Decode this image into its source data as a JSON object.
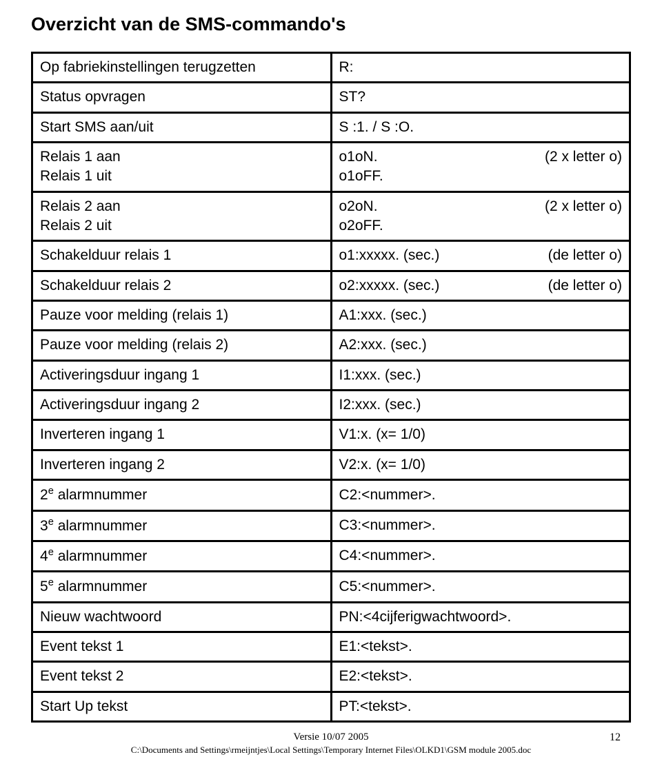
{
  "title": "Overzicht van de SMS-commando's",
  "rows": [
    {
      "left": [
        "Op fabriekinstellingen terugzetten"
      ],
      "right": [
        "R:"
      ],
      "note": ""
    },
    {
      "left": [
        "Status opvragen"
      ],
      "right": [
        "ST?"
      ],
      "note": ""
    },
    {
      "left": [
        "Start SMS aan/uit"
      ],
      "right": [
        "S :1. / S :O."
      ],
      "note": ""
    },
    {
      "left": [
        "Relais 1 aan",
        "Relais 1 uit"
      ],
      "right": [
        "o1oN.",
        "o1oFF."
      ],
      "note": "(2 x letter o)"
    },
    {
      "left": [
        "Relais 2 aan",
        "Relais 2 uit"
      ],
      "right": [
        "o2oN.",
        "o2oFF."
      ],
      "note": "(2 x letter o)"
    },
    {
      "left": [
        "Schakelduur relais 1"
      ],
      "right": [
        "o1:xxxxx. (sec.)"
      ],
      "note": "(de letter o)"
    },
    {
      "left": [
        "Schakelduur relais 2"
      ],
      "right": [
        "o2:xxxxx. (sec.)"
      ],
      "note": "(de letter o)"
    },
    {
      "left": [
        "Pauze voor melding (relais 1)"
      ],
      "right": [
        "A1:xxx. (sec.)"
      ],
      "note": ""
    },
    {
      "left": [
        "Pauze voor melding (relais 2)"
      ],
      "right": [
        "A2:xxx. (sec.)"
      ],
      "note": ""
    },
    {
      "left": [
        "Activeringsduur ingang 1"
      ],
      "right": [
        "I1:xxx. (sec.)"
      ],
      "note": ""
    },
    {
      "left": [
        "Activeringsduur ingang 2"
      ],
      "right": [
        "I2:xxx. (sec.)"
      ],
      "note": ""
    },
    {
      "left": [
        "Inverteren ingang 1"
      ],
      "right": [
        "V1:x. (x= 1/0)"
      ],
      "note": ""
    },
    {
      "left": [
        "Inverteren ingang 2"
      ],
      "right": [
        "V2:x. (x= 1/0)"
      ],
      "note": ""
    },
    {
      "left_html": "2<sup>e</sup> alarmnummer",
      "right": [
        "C2:<nummer>."
      ],
      "note": ""
    },
    {
      "left_html": "3<sup>e</sup> alarmnummer",
      "right": [
        "C3:<nummer>."
      ],
      "note": ""
    },
    {
      "left_html": "4<sup>e</sup>  alarmnummer",
      "right": [
        "C4:<nummer>."
      ],
      "note": ""
    },
    {
      "left_html": "5<sup>e</sup> alarmnummer",
      "right": [
        "C5:<nummer>."
      ],
      "note": ""
    },
    {
      "left": [
        "Nieuw wachtwoord"
      ],
      "right": [
        "PN:<4cijferigwachtwoord>."
      ],
      "note": ""
    },
    {
      "left": [
        "Event tekst 1"
      ],
      "right": [
        "E1:<tekst>."
      ],
      "note": ""
    },
    {
      "left": [
        "Event tekst 2"
      ],
      "right": [
        "E2:<tekst>."
      ],
      "note": ""
    },
    {
      "left": [
        "Start Up tekst"
      ],
      "right": [
        "PT:<tekst>."
      ],
      "note": ""
    }
  ],
  "footer": {
    "version": "Versie 10/07 2005",
    "page": "12",
    "path": "C:\\Documents and Settings\\rmeijntjes\\Local Settings\\Temporary Internet Files\\OLKD1\\GSM module 2005.doc"
  },
  "colors": {
    "text": "#000000",
    "background": "#ffffff",
    "border": "#000000"
  }
}
